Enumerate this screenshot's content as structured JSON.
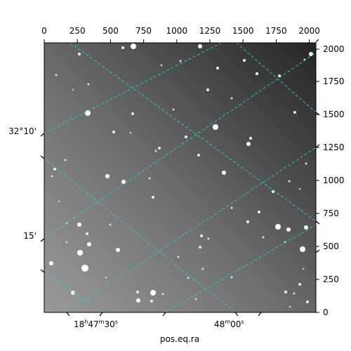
{
  "xlabel": "pos.eq.ra",
  "top_axis": {
    "ticks": [
      "0",
      "250",
      "500",
      "750",
      "1000",
      "1250",
      "1500",
      "1750",
      "2000"
    ]
  },
  "right_axis": {
    "ticks": [
      "0",
      "250",
      "500",
      "750",
      "1000",
      "1250",
      "1500",
      "1750",
      "2000"
    ]
  },
  "left_axis": {
    "ticks": [
      "32°10'",
      "15'"
    ]
  },
  "bottom_axis": {
    "ticks": [
      {
        "h": "18",
        "m": "47",
        "s": "30"
      },
      {
        "m": "48",
        "s": "00"
      }
    ]
  },
  "colors": {
    "grid": "#22d3d3",
    "sky_dark": "#2a2a2a",
    "sky_light": "#8a8a8a"
  }
}
